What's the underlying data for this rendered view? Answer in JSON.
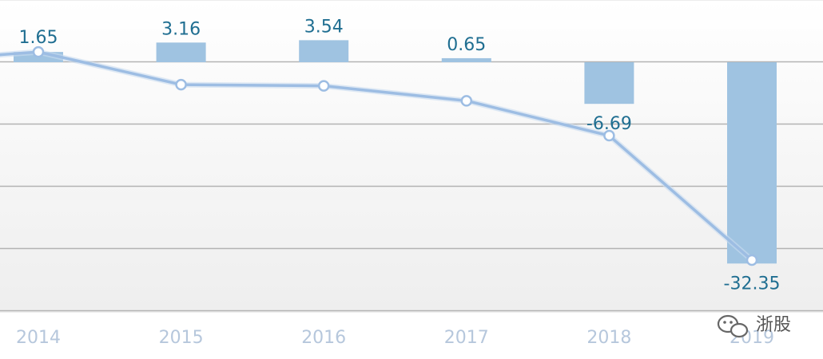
{
  "chart_data": {
    "type": "bar",
    "categories": [
      "2014",
      "2015",
      "2016",
      "2017",
      "2018",
      "2019"
    ],
    "series": [
      {
        "type": "bar",
        "values": [
          1.65,
          3.16,
          3.54,
          0.65,
          -6.69,
          -32.35
        ]
      },
      {
        "type": "line",
        "values": [
          1.65,
          -3.6,
          -3.8,
          -6.2,
          -11.8,
          -31.8
        ]
      }
    ],
    "data_labels": [
      "1.65",
      "3.16",
      "3.54",
      "0.65",
      "-6.69",
      "-32.35"
    ],
    "ylim": [
      -40,
      10
    ],
    "grid": true,
    "colors": {
      "bar": "#9fc3e1",
      "line": "#9dbde3",
      "marker_fill": "#ffffff",
      "grid": "#b3b3b3",
      "tick_label": "#b6c7dc",
      "value_label": "#1f6e91"
    }
  },
  "watermark": {
    "text": "浙股",
    "icon": "wechat-icon"
  }
}
